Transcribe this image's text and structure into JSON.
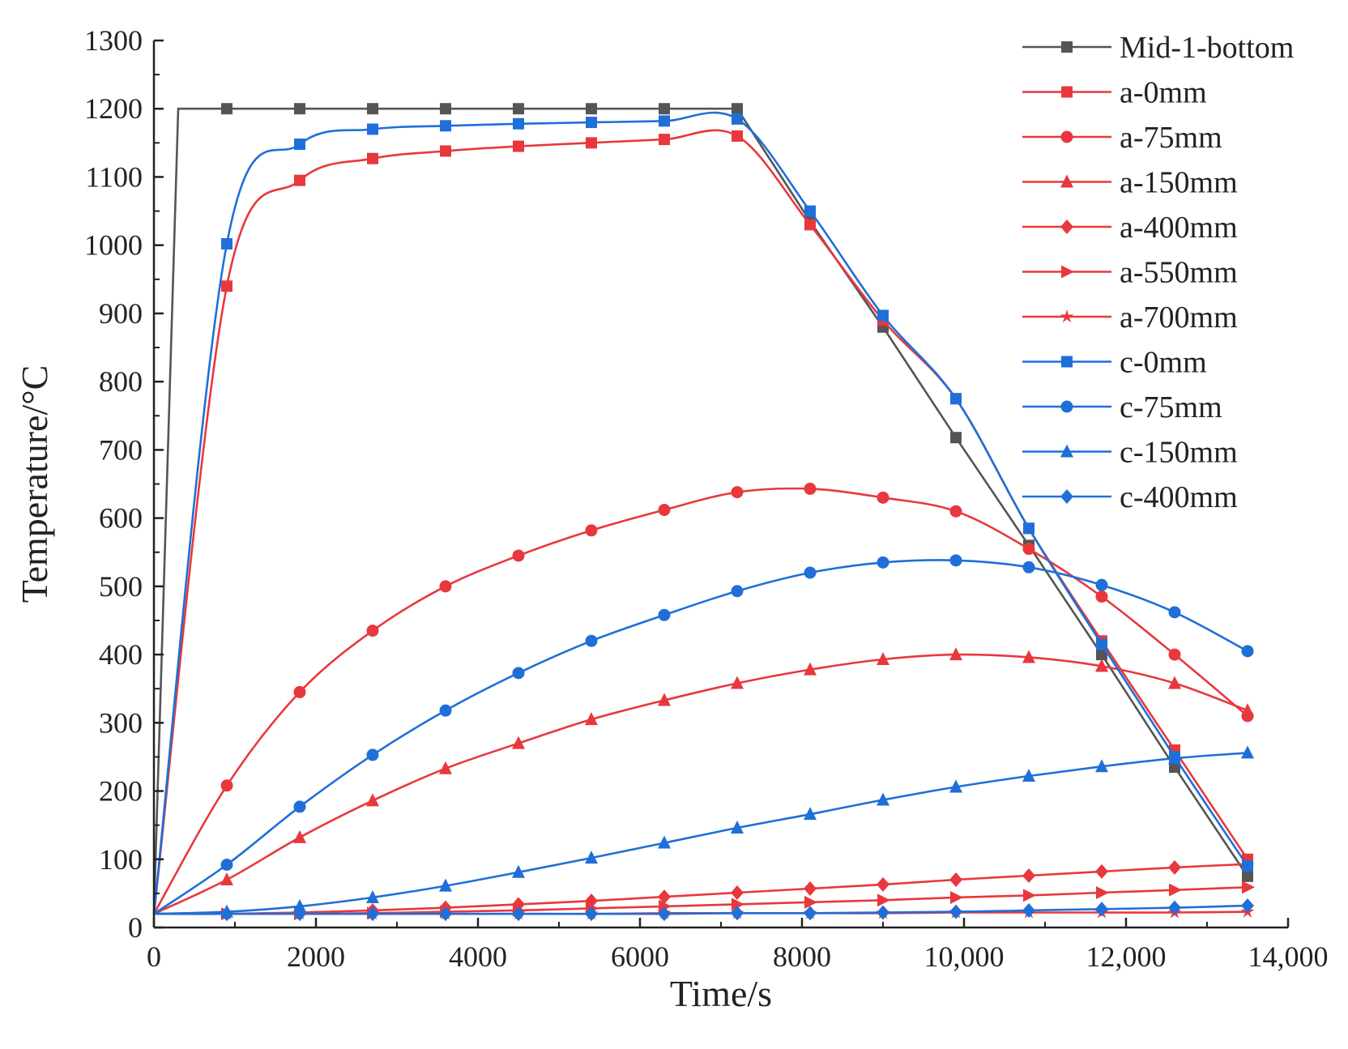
{
  "chart_data": {
    "type": "line",
    "title": "",
    "xlabel": "Time/s",
    "ylabel": "Temperature/°C",
    "xlim": [
      0,
      14000
    ],
    "ylim": [
      0,
      1300
    ],
    "xticks": [
      0,
      2000,
      4000,
      6000,
      8000,
      10000,
      12000,
      14000
    ],
    "xtick_labels": [
      "0",
      "2000",
      "4000",
      "6000",
      "8000",
      "10,000",
      "12,000",
      "14,000"
    ],
    "yticks": [
      0,
      100,
      200,
      300,
      400,
      500,
      600,
      700,
      800,
      900,
      1000,
      1100,
      1200,
      1300
    ],
    "ytick_labels": [
      "0",
      "100",
      "200",
      "300",
      "400",
      "500",
      "600",
      "700",
      "800",
      "900",
      "1000",
      "1100",
      "1200",
      "1300"
    ],
    "legend_position": "top-right",
    "series": [
      {
        "name": "Mid-1-bottom",
        "color": "#555555",
        "marker": "square",
        "smooth": false,
        "line_x": [
          0,
          300,
          900,
          1800,
          2700,
          3600,
          4500,
          5400,
          6300,
          7200,
          8100,
          9000,
          9900,
          10800,
          11700,
          12600,
          13500
        ],
        "line_y": [
          20,
          1200,
          1200,
          1200,
          1200,
          1200,
          1200,
          1200,
          1200,
          1200,
          1035,
          880,
          718,
          560,
          400,
          235,
          75
        ],
        "points_x": [
          900,
          1800,
          2700,
          3600,
          4500,
          5400,
          6300,
          7200,
          8100,
          9000,
          9900,
          10800,
          11700,
          12600,
          13500
        ],
        "points_y": [
          1200,
          1200,
          1200,
          1200,
          1200,
          1200,
          1200,
          1200,
          1035,
          880,
          718,
          560,
          400,
          235,
          75
        ]
      },
      {
        "name": "a-0mm",
        "color": "#e8383d",
        "marker": "square",
        "smooth": true,
        "line_x": [
          0,
          900,
          1800,
          2700,
          3600,
          4500,
          5400,
          6300,
          7200,
          8100,
          9000,
          9900,
          10800,
          11700,
          12600,
          13500
        ],
        "line_y": [
          20,
          940,
          1095,
          1127,
          1138,
          1145,
          1150,
          1155,
          1160,
          1030,
          890,
          775,
          585,
          420,
          260,
          100
        ],
        "points_x": [
          900,
          1800,
          2700,
          3600,
          4500,
          5400,
          6300,
          7200,
          8100,
          9000,
          9900,
          10800,
          11700,
          12600,
          13500
        ],
        "points_y": [
          940,
          1095,
          1127,
          1138,
          1145,
          1150,
          1155,
          1160,
          1030,
          890,
          775,
          585,
          420,
          260,
          100
        ]
      },
      {
        "name": "a-75mm",
        "color": "#e8383d",
        "marker": "circle",
        "smooth": true,
        "line_x": [
          0,
          900,
          1800,
          2700,
          3600,
          4500,
          5400,
          6300,
          7200,
          8100,
          9000,
          9900,
          10800,
          11700,
          12600,
          13500
        ],
        "line_y": [
          20,
          208,
          345,
          435,
          500,
          545,
          582,
          612,
          638,
          643,
          630,
          610,
          555,
          485,
          400,
          310
        ],
        "points_x": [
          900,
          1800,
          2700,
          3600,
          4500,
          5400,
          6300,
          7200,
          8100,
          9000,
          9900,
          10800,
          11700,
          12600,
          13500
        ],
        "points_y": [
          208,
          345,
          435,
          500,
          545,
          582,
          612,
          638,
          643,
          630,
          610,
          555,
          485,
          400,
          310
        ]
      },
      {
        "name": "a-150mm",
        "color": "#e8383d",
        "marker": "triangle",
        "smooth": true,
        "line_x": [
          0,
          900,
          1800,
          2700,
          3600,
          4500,
          5400,
          6300,
          7200,
          8100,
          9000,
          9900,
          10800,
          11700,
          12600,
          13500
        ],
        "line_y": [
          20,
          70,
          132,
          186,
          233,
          270,
          305,
          333,
          358,
          378,
          393,
          400,
          396,
          383,
          358,
          318
        ],
        "points_x": [
          900,
          1800,
          2700,
          3600,
          4500,
          5400,
          6300,
          7200,
          8100,
          9000,
          9900,
          10800,
          11700,
          12600,
          13500
        ],
        "points_y": [
          70,
          132,
          186,
          233,
          270,
          305,
          333,
          358,
          378,
          393,
          400,
          396,
          383,
          358,
          318
        ]
      },
      {
        "name": "a-400mm",
        "color": "#e8383d",
        "marker": "diamond",
        "smooth": true,
        "line_x": [
          0,
          900,
          1800,
          2700,
          3600,
          4500,
          5400,
          6300,
          7200,
          8100,
          9000,
          9900,
          10800,
          11700,
          12600,
          13500
        ],
        "line_y": [
          20,
          20,
          22,
          25,
          29,
          34,
          39,
          45,
          51,
          57,
          63,
          70,
          76,
          82,
          88,
          93
        ],
        "points_x": [
          900,
          1800,
          2700,
          3600,
          4500,
          5400,
          6300,
          7200,
          8100,
          9000,
          9900,
          10800,
          11700,
          12600,
          13500
        ],
        "points_y": [
          20,
          22,
          25,
          29,
          34,
          39,
          45,
          51,
          57,
          63,
          70,
          76,
          82,
          88,
          93
        ]
      },
      {
        "name": "a-550mm",
        "color": "#e8383d",
        "marker": "right-triangle",
        "smooth": true,
        "line_x": [
          0,
          900,
          1800,
          2700,
          3600,
          4500,
          5400,
          6300,
          7200,
          8100,
          9000,
          9900,
          10800,
          11700,
          12600,
          13500
        ],
        "line_y": [
          20,
          20,
          20,
          21,
          23,
          25,
          28,
          31,
          34,
          37,
          40,
          44,
          47,
          51,
          55,
          59
        ],
        "points_x": [
          900,
          1800,
          2700,
          3600,
          4500,
          5400,
          6300,
          7200,
          8100,
          9000,
          9900,
          10800,
          11700,
          12600,
          13500
        ],
        "points_y": [
          20,
          20,
          21,
          23,
          25,
          28,
          31,
          34,
          37,
          40,
          44,
          47,
          51,
          55,
          59
        ]
      },
      {
        "name": "a-700mm",
        "color": "#e8383d",
        "marker": "star",
        "smooth": true,
        "line_x": [
          0,
          900,
          1800,
          2700,
          3600,
          4500,
          5400,
          6300,
          7200,
          8100,
          9000,
          9900,
          10800,
          11700,
          12600,
          13500
        ],
        "line_y": [
          20,
          20,
          20,
          20,
          20,
          20,
          20,
          21,
          21,
          21,
          21,
          22,
          22,
          22,
          22,
          23
        ],
        "points_x": [
          900,
          1800,
          2700,
          3600,
          4500,
          5400,
          6300,
          7200,
          8100,
          9000,
          9900,
          10800,
          11700,
          12600,
          13500
        ],
        "points_y": [
          20,
          20,
          20,
          20,
          20,
          20,
          21,
          21,
          21,
          21,
          22,
          22,
          22,
          22,
          23
        ]
      },
      {
        "name": "c-0mm",
        "color": "#1f6fd8",
        "marker": "square",
        "smooth": true,
        "line_x": [
          0,
          900,
          1800,
          2700,
          3600,
          4500,
          5400,
          6300,
          7200,
          8100,
          9000,
          9900,
          10800,
          11700,
          12600,
          13500
        ],
        "line_y": [
          20,
          1002,
          1148,
          1170,
          1175,
          1178,
          1180,
          1182,
          1185,
          1050,
          897,
          775,
          585,
          415,
          250,
          90
        ],
        "points_x": [
          900,
          1800,
          2700,
          3600,
          4500,
          5400,
          6300,
          7200,
          8100,
          9000,
          9900,
          10800,
          11700,
          12600,
          13500
        ],
        "points_y": [
          1002,
          1148,
          1170,
          1175,
          1178,
          1180,
          1182,
          1185,
          1050,
          897,
          775,
          585,
          415,
          250,
          90
        ]
      },
      {
        "name": "c-75mm",
        "color": "#1f6fd8",
        "marker": "circle",
        "smooth": true,
        "line_x": [
          0,
          900,
          1800,
          2700,
          3600,
          4500,
          5400,
          6300,
          7200,
          8100,
          9000,
          9900,
          10800,
          11700,
          12600,
          13500
        ],
        "line_y": [
          20,
          92,
          177,
          253,
          318,
          373,
          420,
          458,
          493,
          520,
          535,
          538,
          528,
          502,
          462,
          405
        ],
        "points_x": [
          900,
          1800,
          2700,
          3600,
          4500,
          5400,
          6300,
          7200,
          8100,
          9000,
          9900,
          10800,
          11700,
          12600,
          13500
        ],
        "points_y": [
          92,
          177,
          253,
          318,
          373,
          420,
          458,
          493,
          520,
          535,
          538,
          528,
          502,
          462,
          405
        ]
      },
      {
        "name": "c-150mm",
        "color": "#1f6fd8",
        "marker": "triangle",
        "smooth": true,
        "line_x": [
          0,
          900,
          1800,
          2700,
          3600,
          4500,
          5400,
          6300,
          7200,
          8100,
          9000,
          9900,
          10800,
          11700,
          12600,
          13500
        ],
        "line_y": [
          20,
          23,
          31,
          44,
          61,
          81,
          102,
          124,
          146,
          166,
          187,
          206,
          222,
          236,
          248,
          256
        ],
        "points_x": [
          900,
          1800,
          2700,
          3600,
          4500,
          5400,
          6300,
          7200,
          8100,
          9000,
          9900,
          10800,
          11700,
          12600,
          13500
        ],
        "points_y": [
          23,
          31,
          44,
          61,
          81,
          102,
          124,
          146,
          166,
          187,
          206,
          222,
          236,
          248,
          256
        ]
      },
      {
        "name": "c-400mm",
        "color": "#1f6fd8",
        "marker": "diamond",
        "smooth": true,
        "line_x": [
          0,
          900,
          1800,
          2700,
          3600,
          4500,
          5400,
          6300,
          7200,
          8100,
          9000,
          9900,
          10800,
          11700,
          12600,
          13500
        ],
        "line_y": [
          20,
          20,
          20,
          20,
          20,
          20,
          20,
          20,
          21,
          21,
          22,
          23,
          25,
          27,
          29,
          32
        ],
        "points_x": [
          900,
          1800,
          2700,
          3600,
          4500,
          5400,
          6300,
          7200,
          8100,
          9000,
          9900,
          10800,
          11700,
          12600,
          13500
        ],
        "points_y": [
          20,
          20,
          20,
          20,
          20,
          20,
          20,
          21,
          21,
          22,
          23,
          25,
          27,
          29,
          32
        ]
      }
    ]
  }
}
